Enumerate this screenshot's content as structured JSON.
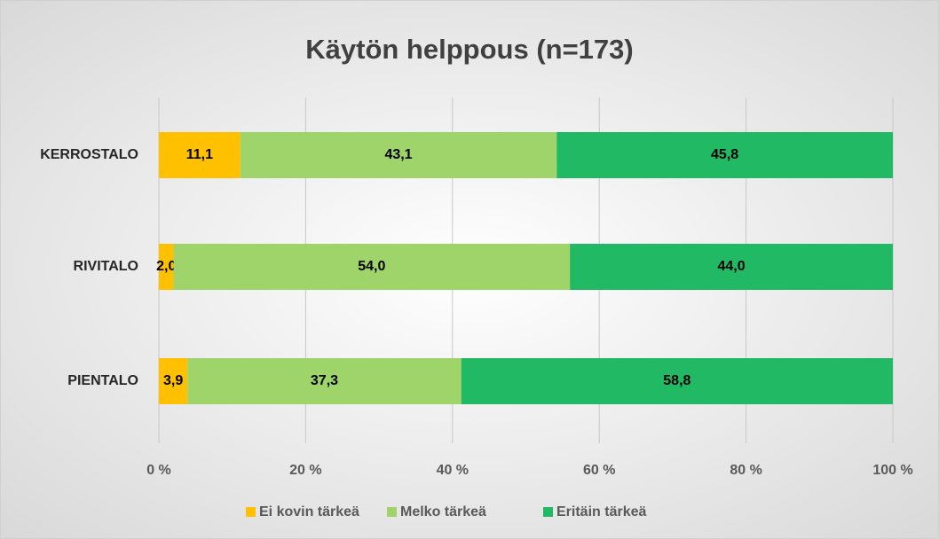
{
  "chart_data": {
    "type": "stacked_bar_horizontal",
    "title": "Käytön helppous (n=173)",
    "categories": [
      "KERROSTALO",
      "RIVITALO",
      "PIENTALO"
    ],
    "series": [
      {
        "name": "Ei kovin tärkeä",
        "color": "#ffc000",
        "values": [
          11.1,
          2.0,
          3.9
        ],
        "value_labels": [
          "11,1",
          "2,0",
          "3,9"
        ]
      },
      {
        "name": "Melko tärkeä",
        "color": "#9fd46a",
        "values": [
          43.1,
          54.0,
          37.3
        ],
        "value_labels": [
          "43,1",
          "54,0",
          "37,3"
        ]
      },
      {
        "name": "Eritäin tärkeä",
        "color": "#22b964",
        "values": [
          45.8,
          44.0,
          58.8
        ],
        "value_labels": [
          "45,8",
          "44,0",
          "58,8"
        ]
      }
    ],
    "xlim": [
      0,
      100
    ],
    "xticks": [
      {
        "value": 0,
        "label": "0 %"
      },
      {
        "value": 20,
        "label": "20 %"
      },
      {
        "value": 40,
        "label": "40 %"
      },
      {
        "value": 60,
        "label": "60 %"
      },
      {
        "value": 80,
        "label": "80 %"
      },
      {
        "value": 100,
        "label": "100 %"
      }
    ],
    "grid": true,
    "legend": "bottom"
  }
}
